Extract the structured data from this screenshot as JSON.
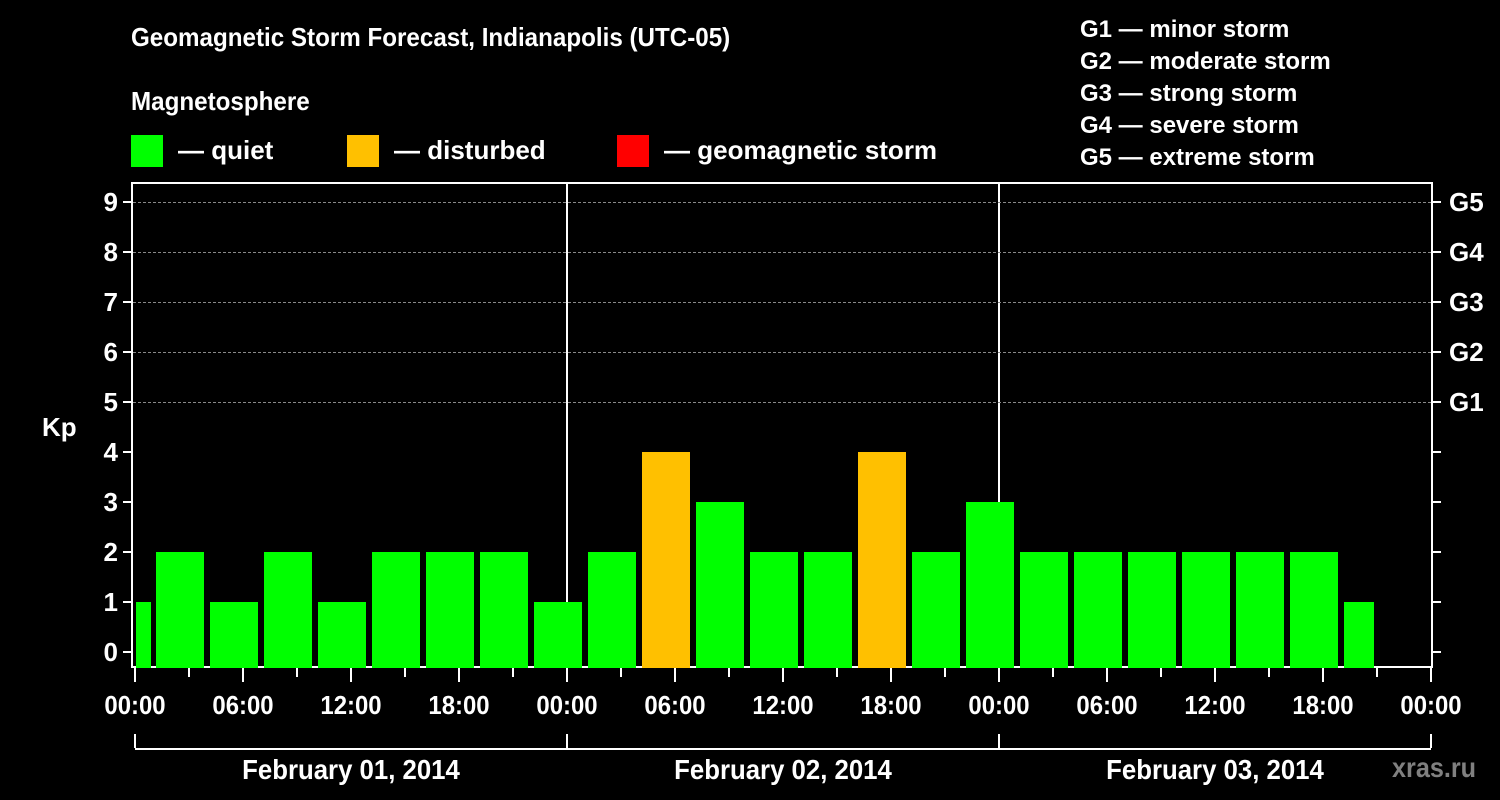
{
  "header": {
    "title": "Geomagnetic Storm Forecast, Indianapolis (UTC-05)",
    "subtitle": "Magnetosphere"
  },
  "legend": [
    {
      "label": "— quiet",
      "color": "#00ff00"
    },
    {
      "label": "— disturbed",
      "color": "#ffc000"
    },
    {
      "label": "— geomagnetic storm",
      "color": "#ff0000"
    }
  ],
  "g_scale": [
    "G1 — minor storm",
    "G2 — moderate storm",
    "G3 — strong storm",
    "G4 — severe storm",
    "G5 — extreme storm"
  ],
  "watermark": "xras.ru",
  "chart_data": {
    "type": "bar",
    "title": "Geomagnetic Storm Forecast, Indianapolis (UTC-05)",
    "xlabel": "",
    "ylabel": "Kp",
    "ylim": [
      0,
      9
    ],
    "yticks": [
      0,
      1,
      2,
      3,
      4,
      5,
      6,
      7,
      8,
      9
    ],
    "right_axis_labels": [
      {
        "kp": 5,
        "label": "G1"
      },
      {
        "kp": 6,
        "label": "G2"
      },
      {
        "kp": 7,
        "label": "G3"
      },
      {
        "kp": 8,
        "label": "G4"
      },
      {
        "kp": 9,
        "label": "G5"
      }
    ],
    "grid": "dashed horizontal at Kp 5-9",
    "x_tick_labels": [
      "00:00",
      "06:00",
      "12:00",
      "18:00",
      "00:00",
      "06:00",
      "12:00",
      "18:00",
      "00:00",
      "06:00",
      "12:00",
      "18:00",
      "00:00"
    ],
    "days": [
      "February 01, 2014",
      "February 02, 2014",
      "February 03, 2014"
    ],
    "bar_interval_hours": 3,
    "categories": [
      "Feb01 ~00:00 (partial)",
      "Feb01 ~03:00",
      "Feb01 ~06:00",
      "Feb01 ~09:00",
      "Feb01 ~12:00",
      "Feb01 ~15:00",
      "Feb01 ~18:00",
      "Feb01 ~21:00",
      "Feb02 ~00:00",
      "Feb02 ~03:00",
      "Feb02 ~06:00",
      "Feb02 ~09:00",
      "Feb02 ~12:00",
      "Feb02 ~15:00",
      "Feb02 ~18:00",
      "Feb02 ~21:00",
      "Feb03 ~00:00",
      "Feb03 ~03:00",
      "Feb03 ~06:00",
      "Feb03 ~09:00",
      "Feb03 ~12:00",
      "Feb03 ~15:00",
      "Feb03 ~18:00",
      "Feb03 ~21:00 (partial)"
    ],
    "values": [
      1,
      2,
      1,
      2,
      1,
      2,
      2,
      2,
      1,
      2,
      4,
      3,
      2,
      2,
      4,
      2,
      3,
      2,
      2,
      2,
      2,
      2,
      2,
      1
    ],
    "status": [
      "quiet",
      "quiet",
      "quiet",
      "quiet",
      "quiet",
      "quiet",
      "quiet",
      "quiet",
      "quiet",
      "quiet",
      "disturbed",
      "quiet",
      "quiet",
      "quiet",
      "disturbed",
      "quiet",
      "quiet",
      "quiet",
      "quiet",
      "quiet",
      "quiet",
      "quiet",
      "quiet",
      "quiet"
    ],
    "colors": {
      "quiet": "#00ff00",
      "disturbed": "#ffc000",
      "storm": "#ff0000"
    },
    "legend_position": "top"
  }
}
